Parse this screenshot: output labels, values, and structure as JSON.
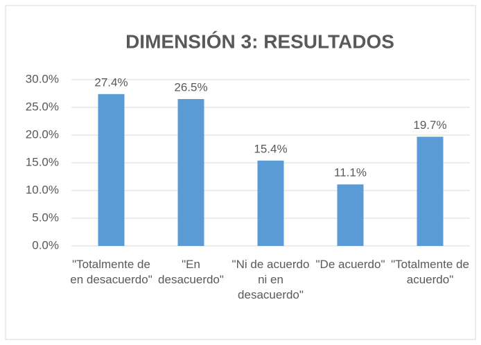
{
  "chart_data": {
    "type": "bar",
    "title": "DIMENSIÓN 3: RESULTADOS",
    "categories": [
      "\"Totalmente de en desacuerdo\"",
      "\"En desacuerdo\"",
      "\"Ni de acuerdo ni en desacuerdo\"",
      "\"De acuerdo\"",
      "\"Totalmente de acuerdo\""
    ],
    "values": [
      27.4,
      26.5,
      15.4,
      11.1,
      19.7
    ],
    "value_labels": [
      "27.4%",
      "26.5%",
      "15.4%",
      "11.1%",
      "19.7%"
    ],
    "color": "#5b9bd5",
    "ylim": [
      0,
      30
    ],
    "yticks": [
      {
        "value": 0,
        "label": "0.0%"
      },
      {
        "value": 5,
        "label": "5.0%"
      },
      {
        "value": 10,
        "label": "10.0%"
      },
      {
        "value": 15,
        "label": "15.0%"
      },
      {
        "value": 20,
        "label": "20.0%"
      },
      {
        "value": 25,
        "label": "25.0%"
      },
      {
        "value": 30,
        "label": "30.0%"
      }
    ],
    "grid": true
  }
}
